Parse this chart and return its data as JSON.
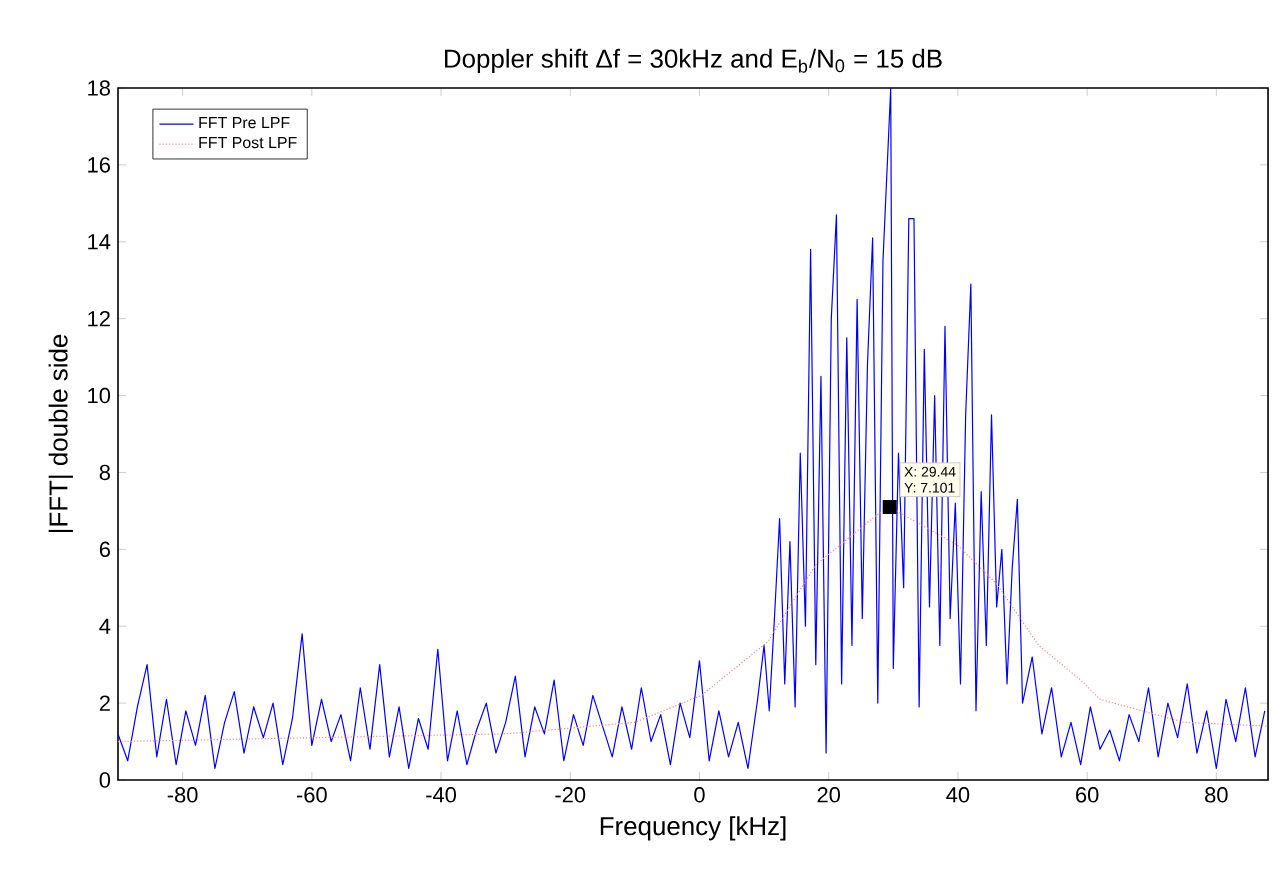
{
  "chart_data": {
    "type": "line",
    "title": "Doppler shift Δf = 30kHz and E$_{b}$/N$_{0}$ = 15 dB",
    "xlabel": "Frequency [kHz]",
    "ylabel": "|FFT| double side",
    "xlim": [
      -90,
      88
    ],
    "ylim": [
      0,
      18
    ],
    "xticks": [
      -80,
      -60,
      -40,
      -20,
      0,
      20,
      40,
      60,
      80
    ],
    "yticks": [
      0,
      2,
      4,
      6,
      8,
      10,
      12,
      14,
      16,
      18
    ],
    "legend": "top left",
    "grid": false,
    "marker": "none",
    "annotations": [
      {
        "text": "X: 29.44",
        "x": 29.44,
        "y": 7.101
      },
      {
        "text": "Y: 7.101",
        "x": 29.44,
        "y": 7.101
      }
    ],
    "series": [
      {
        "name": "FFT Pre LPF",
        "color": "#0000ff",
        "line_style": "solid",
        "x": [
          -90,
          -88.5,
          -87,
          -85.5,
          -84,
          -82.5,
          -81,
          -79.5,
          -78,
          -76.5,
          -75,
          -73.5,
          -72,
          -70.5,
          -69,
          -67.5,
          -66,
          -64.5,
          -63,
          -61.5,
          -60,
          -58.5,
          -57,
          -55.5,
          -54,
          -52.5,
          -51,
          -49.5,
          -48,
          -46.5,
          -45,
          -43.5,
          -42,
          -40.5,
          -39,
          -37.5,
          -36,
          -34.5,
          -33,
          -31.5,
          -30,
          -28.5,
          -27,
          -25.5,
          -24,
          -22.5,
          -21,
          -19.5,
          -18,
          -16.5,
          -15,
          -13.5,
          -12,
          -10.5,
          -9,
          -7.5,
          -6,
          -4.5,
          -3,
          -1.5,
          0,
          1.5,
          3,
          4.5,
          6,
          7.5,
          9,
          10,
          10.8,
          11.6,
          12.4,
          13.2,
          14,
          14.8,
          15.6,
          16.4,
          17.2,
          18,
          18.8,
          19.6,
          20.4,
          21.2,
          22,
          22.8,
          23.6,
          24.4,
          25.2,
          26,
          26.8,
          27.6,
          28.4,
          29.6,
          30,
          30.8,
          31.6,
          32.4,
          33.2,
          34,
          34.8,
          35.6,
          36.4,
          37.2,
          38,
          38.8,
          39.6,
          40.4,
          41.2,
          42,
          42.8,
          43.6,
          44.4,
          45.2,
          46,
          46.8,
          47.6,
          48.4,
          49.2,
          50,
          51.5,
          53,
          54.5,
          56,
          57.5,
          59,
          60.5,
          62,
          63.5,
          65,
          66.5,
          68,
          69.5,
          71,
          72.5,
          74,
          75.5,
          77,
          78.5,
          80,
          81.5,
          83,
          84.5,
          86,
          87.5
        ],
        "values": [
          1.2,
          0.5,
          1.9,
          3.0,
          0.6,
          2.1,
          0.4,
          1.8,
          0.9,
          2.2,
          0.3,
          1.5,
          2.3,
          0.7,
          1.9,
          1.1,
          2.0,
          0.4,
          1.6,
          3.8,
          0.9,
          2.1,
          1.0,
          1.7,
          0.5,
          2.4,
          0.8,
          3.0,
          0.6,
          1.9,
          0.3,
          1.6,
          0.8,
          3.4,
          0.5,
          1.8,
          0.4,
          1.3,
          2.0,
          0.7,
          1.5,
          2.7,
          0.6,
          1.9,
          1.2,
          2.6,
          0.5,
          1.7,
          0.9,
          2.2,
          1.4,
          0.6,
          1.9,
          0.8,
          2.4,
          1.0,
          1.7,
          0.4,
          2.0,
          1.1,
          3.1,
          0.5,
          1.8,
          0.6,
          1.5,
          0.3,
          2.1,
          3.5,
          1.8,
          4.2,
          6.8,
          2.5,
          6.2,
          1.9,
          8.5,
          4.0,
          13.8,
          3.0,
          10.5,
          0.7,
          12.0,
          14.7,
          2.5,
          11.5,
          3.5,
          12.5,
          4.2,
          10.8,
          14.1,
          2.0,
          13.5,
          18.0,
          2.9,
          8.5,
          5.0,
          14.6,
          14.6,
          1.9,
          11.2,
          4.5,
          10.0,
          3.5,
          11.8,
          4.2,
          7.2,
          2.5,
          9.5,
          12.9,
          1.8,
          7.5,
          3.5,
          9.5,
          4.5,
          6.0,
          2.5,
          5.5,
          7.3,
          2.0,
          3.2,
          1.2,
          2.4,
          0.6,
          1.5,
          0.4,
          1.9,
          0.8,
          1.3,
          0.5,
          1.7,
          1.0,
          2.4,
          0.6,
          2.0,
          1.1,
          2.5,
          0.7,
          1.8,
          0.3,
          2.1,
          1.0,
          2.4,
          0.6,
          1.8
        ]
      },
      {
        "name": "FFT Post LPF",
        "color": "#ff8080",
        "line_style": "dotted",
        "x": [
          -90,
          -60,
          -30,
          -10,
          0.3,
          10.6,
          18,
          27.5,
          29.44,
          40,
          46,
          52.5,
          59,
          62,
          75,
          88
        ],
        "values": [
          1.0,
          1.1,
          1.2,
          1.5,
          2.2,
          3.6,
          5.6,
          6.9,
          7.101,
          6.1,
          5.1,
          3.5,
          2.6,
          2.1,
          1.5,
          1.4
        ]
      }
    ]
  }
}
